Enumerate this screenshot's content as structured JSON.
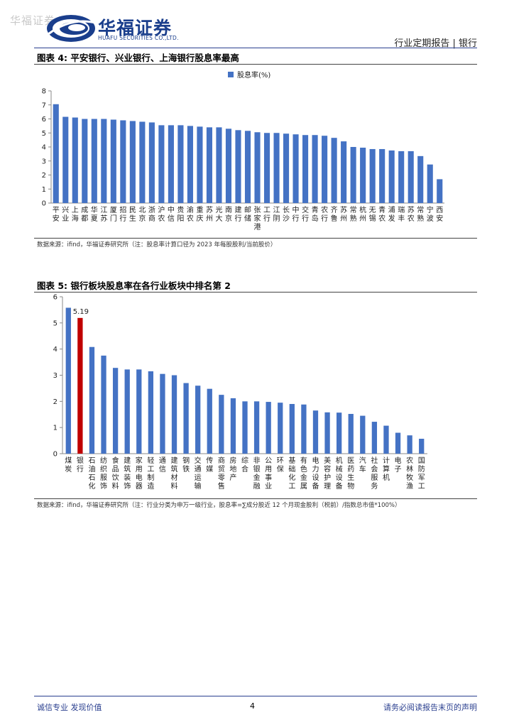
{
  "header": {
    "watermark": "华福证券",
    "logo_cn": "华福证券",
    "logo_en": "HUAFU SECURITIES CO.,LTD.",
    "report_type": "行业定期报告 | 银行"
  },
  "colors": {
    "bar": "#4472c4",
    "highlight": "#c00000",
    "brand": "#1a3e8c"
  },
  "figure4": {
    "title": "图表 4:  平安银行、兴业银行、上海银行股息率最高",
    "source": "数据来源：ifind，华福证券研究所（注：股息率计算口径为 2023 年每股股利/当前股价）",
    "chart_data": {
      "type": "bar",
      "legend": "股息率(%)",
      "legend_position": "top",
      "ylim": [
        0,
        8
      ],
      "yticks": [
        0,
        1,
        2,
        3,
        4,
        5,
        6,
        7,
        8
      ],
      "categories": [
        "平安",
        "兴业",
        "上海",
        "成都",
        "华夏",
        "江苏",
        "厦门",
        "招行",
        "民生",
        "北京",
        "浙商",
        "沪农",
        "中信",
        "贵阳",
        "渝农",
        "重庆",
        "苏州",
        "光大",
        "南京",
        "建行",
        "邮储",
        "张家港",
        "工行",
        "江阴",
        "长沙",
        "中行",
        "交行",
        "青岛",
        "农行",
        "齐鲁",
        "苏州",
        "常熟",
        "杭州",
        "无锡",
        "青农",
        "浦发",
        "瑞丰",
        "苏农",
        "常熟",
        "宁波",
        "西安"
      ],
      "category_labels": [
        "平安",
        "兴业",
        "上海",
        "成都",
        "华夏",
        "江苏",
        "厦门",
        "招行",
        "民生",
        "北京",
        "浙商",
        "沪农",
        "中信",
        "贵阳",
        "渝农",
        "重庆",
        "苏州",
        "光大",
        "南京",
        "建行",
        "邮储",
        "张家港",
        "工行",
        "江阴",
        "长沙",
        "中行",
        "交行",
        "青岛",
        "农行",
        "齐鲁",
        "苏州",
        "常熟",
        "杭州",
        "无锡",
        "青农",
        "浦发",
        "瑞丰",
        "苏农",
        "常熟",
        "宁波",
        "西安"
      ],
      "series": [
        {
          "name": "股息率(%)",
          "values": [
            7.05,
            6.15,
            6.1,
            6.0,
            6.0,
            6.0,
            5.95,
            5.9,
            5.85,
            5.8,
            5.75,
            5.55,
            5.55,
            5.55,
            5.5,
            5.45,
            5.4,
            5.4,
            5.3,
            5.2,
            5.15,
            5.05,
            5.0,
            5.0,
            4.95,
            4.9,
            4.85,
            4.85,
            4.8,
            4.65,
            4.4,
            4.0,
            3.95,
            3.85,
            3.85,
            3.75,
            3.7,
            3.7,
            3.35,
            2.75,
            1.7
          ]
        }
      ]
    }
  },
  "figure5": {
    "title": "图表 5:  银行板块股息率在各行业板块中排名第 2",
    "source": "数据来源：ifind，华福证券研究所（注：行业分类为申万一级行业，股息率=∑成分股近 12 个月现金股利（税前）/指数总市值*100%）",
    "chart_data": {
      "type": "bar",
      "ylim": [
        0,
        6
      ],
      "yticks": [
        0,
        1,
        2,
        3,
        4,
        5,
        6
      ],
      "data_label": "5.19",
      "highlight_category": "银行",
      "categories": [
        "煤炭",
        "银行",
        "石油石化",
        "纺织服饰",
        "食品饮料",
        "建筑装饰",
        "家用电器",
        "轻工制造",
        "通信",
        "建筑材料",
        "钢铁",
        "交通运输",
        "传媒",
        "商贸零售",
        "房地产",
        "综合",
        "非银金融",
        "公用事业",
        "环保",
        "基础化工",
        "有色金属",
        "电力设备",
        "美容护理",
        "机械设备",
        "医药生物",
        "汽车",
        "社会服务",
        "计算机",
        "电子",
        "农林牧渔",
        "国防军工"
      ],
      "series": [
        {
          "name": "股息率",
          "values": [
            5.58,
            5.19,
            4.08,
            3.75,
            3.28,
            3.22,
            3.22,
            3.15,
            3.05,
            3.0,
            2.7,
            2.6,
            2.48,
            2.25,
            2.12,
            2.0,
            2.0,
            1.98,
            1.95,
            1.9,
            1.88,
            1.65,
            1.58,
            1.57,
            1.52,
            1.45,
            1.22,
            1.07,
            0.8,
            0.7,
            0.57
          ]
        }
      ]
    }
  },
  "footer": {
    "left": "诚信专业  发现价值",
    "page": "4",
    "right": "请务必阅读报告末页的声明"
  }
}
